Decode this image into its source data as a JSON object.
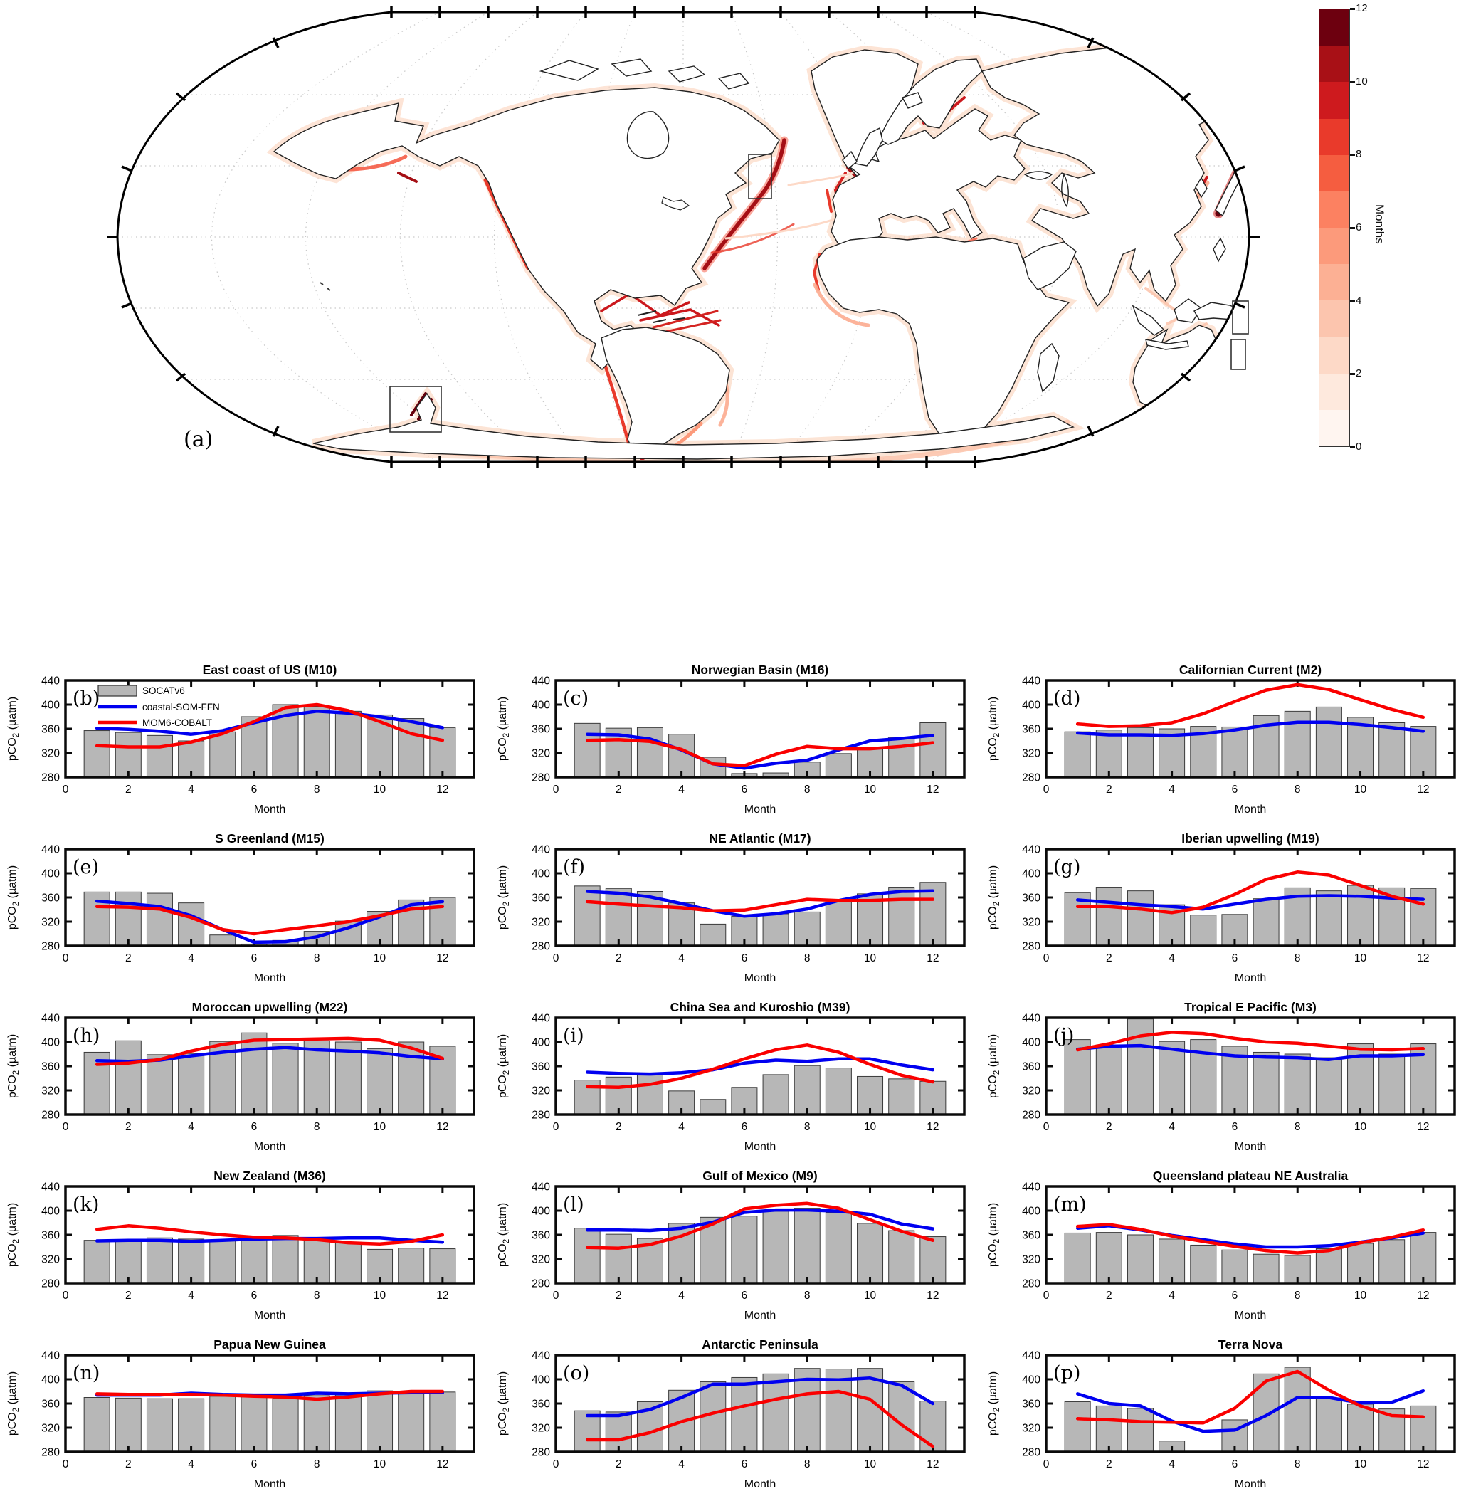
{
  "map": {
    "label": "(a)",
    "colorbar": {
      "title": "Months",
      "ticks": [
        0,
        2,
        4,
        6,
        8,
        10,
        12
      ],
      "min": 0,
      "max": 12,
      "colors": [
        "#fff5f0",
        "#fee9dd",
        "#fdd9c7",
        "#fcc5ae",
        "#fcb094",
        "#fc9a7b",
        "#fc8161",
        "#f55d40",
        "#e93a2b",
        "#ce1a1e",
        "#a81016",
        "#6d000f"
      ]
    }
  },
  "axes_common": {
    "xlabel": "Month",
    "ylabel": "pCO2 (µatm)",
    "xticks": [
      0,
      2,
      4,
      6,
      8,
      10,
      12
    ],
    "yticks": [
      280,
      320,
      360,
      400,
      440
    ],
    "xlim": [
      0,
      13
    ],
    "ylim": [
      280,
      440
    ],
    "grid": false
  },
  "months": [
    1,
    2,
    3,
    4,
    5,
    6,
    7,
    8,
    9,
    10,
    11,
    12
  ],
  "legend": {
    "position": "top-left of panel (b)",
    "entries": [
      {
        "label": "SOCATv6",
        "swatch": "bar",
        "color": "#b7b7b7"
      },
      {
        "label": "coastal-SOM-FFN",
        "swatch": "line",
        "color": "#0000f0"
      },
      {
        "label": "MOM6-COBALT",
        "swatch": "line",
        "color": "#fa0000"
      }
    ]
  },
  "chart_data": [
    {
      "type": "bar",
      "panel": "(b)",
      "title": "East coast of US (M10)",
      "series": [
        {
          "name": "SOCATv6",
          "type": "bar",
          "values": [
            357,
            354,
            349,
            340,
            355,
            380,
            400,
            397,
            389,
            383,
            377,
            362
          ]
        },
        {
          "name": "coastal-SOM-FFN",
          "type": "line",
          "values": [
            361,
            359,
            356,
            351,
            357,
            370,
            382,
            389,
            386,
            380,
            372,
            362
          ]
        },
        {
          "name": "MOM6-COBALT",
          "type": "line",
          "values": [
            332,
            330,
            330,
            338,
            352,
            372,
            395,
            400,
            390,
            372,
            352,
            341
          ]
        }
      ]
    },
    {
      "type": "bar",
      "panel": "(c)",
      "title": "Norwegian Basin (M16)",
      "series": [
        {
          "name": "SOCATv6",
          "type": "bar",
          "values": [
            369,
            361,
            362,
            351,
            313,
            286,
            287,
            305,
            319,
            330,
            346,
            370
          ]
        },
        {
          "name": "coastal-SOM-FFN",
          "type": "line",
          "values": [
            351,
            350,
            343,
            325,
            302,
            295,
            303,
            308,
            325,
            340,
            344,
            349
          ]
        },
        {
          "name": "MOM6-COBALT",
          "type": "line",
          "values": [
            341,
            342,
            339,
            326,
            302,
            299,
            318,
            331,
            327,
            327,
            331,
            337
          ]
        }
      ]
    },
    {
      "type": "bar",
      "panel": "(d)",
      "title": "Californian Current (M2)",
      "series": [
        {
          "name": "SOCATv6",
          "type": "bar",
          "values": [
            355,
            358,
            362,
            360,
            364,
            363,
            382,
            389,
            396,
            379,
            370,
            364
          ]
        },
        {
          "name": "coastal-SOM-FFN",
          "type": "line",
          "values": [
            353,
            350,
            350,
            349,
            352,
            358,
            366,
            371,
            371,
            367,
            362,
            356
          ]
        },
        {
          "name": "MOM6-COBALT",
          "type": "line",
          "values": [
            368,
            364,
            365,
            370,
            385,
            405,
            424,
            433,
            425,
            408,
            392,
            379
          ]
        }
      ]
    },
    {
      "type": "bar",
      "panel": "(e)",
      "title": "S Greenland (M15)",
      "series": [
        {
          "name": "SOCATv6",
          "type": "bar",
          "values": [
            369,
            369,
            367,
            351,
            298,
            283,
            289,
            304,
            321,
            337,
            356,
            360
          ]
        },
        {
          "name": "coastal-SOM-FFN",
          "type": "line",
          "values": [
            354,
            350,
            345,
            330,
            307,
            286,
            287,
            295,
            310,
            328,
            348,
            353
          ]
        },
        {
          "name": "MOM6-COBALT",
          "type": "line",
          "values": [
            345,
            344,
            341,
            327,
            307,
            300,
            307,
            313,
            320,
            330,
            341,
            345
          ]
        }
      ]
    },
    {
      "type": "bar",
      "panel": "(f)",
      "title": "NE Atlantic (M17)",
      "series": [
        {
          "name": "SOCATv6",
          "type": "bar",
          "values": [
            379,
            375,
            370,
            351,
            316,
            329,
            333,
            336,
            355,
            366,
            377,
            385
          ]
        },
        {
          "name": "coastal-SOM-FFN",
          "type": "line",
          "values": [
            370,
            367,
            361,
            350,
            338,
            329,
            333,
            341,
            355,
            365,
            370,
            371
          ]
        },
        {
          "name": "MOM6-COBALT",
          "type": "line",
          "values": [
            353,
            349,
            346,
            343,
            338,
            339,
            348,
            357,
            355,
            355,
            357,
            357
          ]
        }
      ]
    },
    {
      "type": "bar",
      "panel": "(g)",
      "title": "Iberian upwelling (M19)",
      "series": [
        {
          "name": "SOCATv6",
          "type": "bar",
          "values": [
            368,
            377,
            371,
            348,
            331,
            332,
            358,
            376,
            371,
            380,
            376,
            375
          ]
        },
        {
          "name": "coastal-SOM-FFN",
          "type": "line",
          "values": [
            356,
            352,
            348,
            345,
            341,
            349,
            357,
            362,
            363,
            362,
            359,
            357
          ]
        },
        {
          "name": "MOM6-COBALT",
          "type": "line",
          "values": [
            345,
            345,
            341,
            335,
            344,
            365,
            390,
            402,
            397,
            380,
            362,
            349
          ]
        }
      ]
    },
    {
      "type": "bar",
      "panel": "(h)",
      "title": "Moroccan upwelling (M22)",
      "series": [
        {
          "name": "SOCATv6",
          "type": "bar",
          "values": [
            383,
            402,
            379,
            381,
            401,
            415,
            398,
            402,
            400,
            389,
            400,
            393
          ]
        },
        {
          "name": "coastal-SOM-FFN",
          "type": "line",
          "values": [
            369,
            368,
            370,
            377,
            383,
            388,
            391,
            387,
            385,
            382,
            376,
            372
          ]
        },
        {
          "name": "MOM6-COBALT",
          "type": "line",
          "values": [
            363,
            365,
            371,
            385,
            396,
            403,
            404,
            405,
            406,
            403,
            390,
            373
          ]
        }
      ]
    },
    {
      "type": "bar",
      "panel": "(i)",
      "title": "China Sea and Kuroshio (M39)",
      "series": [
        {
          "name": "SOCATv6",
          "type": "bar",
          "values": [
            337,
            342,
            346,
            319,
            305,
            325,
            346,
            361,
            357,
            343,
            339,
            335
          ]
        },
        {
          "name": "coastal-SOM-FFN",
          "type": "line",
          "values": [
            350,
            348,
            347,
            349,
            354,
            365,
            370,
            368,
            372,
            372,
            362,
            354
          ]
        },
        {
          "name": "MOM6-COBALT",
          "type": "line",
          "values": [
            326,
            325,
            330,
            340,
            355,
            372,
            387,
            395,
            383,
            363,
            345,
            334
          ]
        }
      ]
    },
    {
      "type": "bar",
      "panel": "(j)",
      "title": "Tropical E Pacific (M3)",
      "series": [
        {
          "name": "SOCATv6",
          "type": "bar",
          "values": [
            404,
            395,
            438,
            401,
            404,
            393,
            383,
            380,
            374,
            397,
            380,
            397
          ]
        },
        {
          "name": "coastal-SOM-FFN",
          "type": "line",
          "values": [
            388,
            393,
            394,
            388,
            382,
            377,
            375,
            374,
            371,
            377,
            377,
            379
          ]
        },
        {
          "name": "MOM6-COBALT",
          "type": "line",
          "values": [
            387,
            397,
            410,
            416,
            414,
            406,
            400,
            398,
            393,
            388,
            387,
            389
          ]
        }
      ]
    },
    {
      "type": "bar",
      "panel": "(k)",
      "title": "New Zealand (M36)",
      "series": [
        {
          "name": "SOCATv6",
          "type": "bar",
          "values": [
            351,
            349,
            355,
            353,
            351,
            354,
            359,
            352,
            347,
            336,
            338,
            337
          ]
        },
        {
          "name": "coastal-SOM-FFN",
          "type": "line",
          "values": [
            350,
            351,
            351,
            349,
            351,
            353,
            354,
            354,
            355,
            355,
            351,
            348
          ]
        },
        {
          "name": "MOM6-COBALT",
          "type": "line",
          "values": [
            369,
            375,
            371,
            365,
            360,
            356,
            355,
            352,
            347,
            345,
            349,
            360
          ]
        }
      ]
    },
    {
      "type": "bar",
      "panel": "(l)",
      "title": "Gulf of Mexico (M9)",
      "series": [
        {
          "name": "SOCATv6",
          "type": "bar",
          "values": [
            371,
            361,
            354,
            379,
            389,
            391,
            399,
            404,
            397,
            379,
            367,
            357
          ]
        },
        {
          "name": "coastal-SOM-FFN",
          "type": "line",
          "values": [
            368,
            368,
            367,
            371,
            381,
            397,
            401,
            401,
            399,
            394,
            378,
            370
          ]
        },
        {
          "name": "MOM6-COBALT",
          "type": "line",
          "values": [
            339,
            338,
            344,
            358,
            378,
            403,
            409,
            412,
            404,
            385,
            366,
            351
          ]
        }
      ]
    },
    {
      "type": "bar",
      "panel": "(m)",
      "title": "Queensland plateau NE Australia",
      "series": [
        {
          "name": "SOCATv6",
          "type": "bar",
          "values": [
            363,
            364,
            360,
            353,
            343,
            335,
            328,
            326,
            337,
            346,
            352,
            364
          ]
        },
        {
          "name": "coastal-SOM-FFN",
          "type": "line",
          "values": [
            371,
            375,
            368,
            359,
            352,
            345,
            340,
            340,
            342,
            348,
            355,
            363
          ]
        },
        {
          "name": "MOM6-COBALT",
          "type": "line",
          "values": [
            374,
            377,
            369,
            358,
            349,
            341,
            334,
            330,
            334,
            347,
            356,
            368
          ]
        }
      ]
    },
    {
      "type": "bar",
      "panel": "(n)",
      "title": "Papua New Guinea",
      "series": [
        {
          "name": "SOCATv6",
          "type": "bar",
          "values": [
            370,
            369,
            368,
            368,
            372,
            371,
            369,
            373,
            374,
            381,
            377,
            379
          ]
        },
        {
          "name": "coastal-SOM-FFN",
          "type": "line",
          "values": [
            374,
            374,
            374,
            377,
            375,
            374,
            374,
            377,
            376,
            377,
            378,
            378
          ]
        },
        {
          "name": "MOM6-COBALT",
          "type": "line",
          "values": [
            376,
            375,
            375,
            375,
            374,
            372,
            371,
            367,
            371,
            376,
            380,
            380
          ]
        }
      ]
    },
    {
      "type": "bar",
      "panel": "(o)",
      "title": "Antarctic Peninsula",
      "series": [
        {
          "name": "SOCATv6",
          "type": "bar",
          "values": [
            348,
            346,
            363,
            382,
            396,
            403,
            409,
            418,
            417,
            418,
            396,
            364
          ]
        },
        {
          "name": "coastal-SOM-FFN",
          "type": "line",
          "values": [
            340,
            340,
            350,
            370,
            392,
            392,
            396,
            400,
            399,
            402,
            390,
            360
          ]
        },
        {
          "name": "MOM6-COBALT",
          "type": "line",
          "values": [
            300,
            300,
            312,
            330,
            344,
            356,
            367,
            376,
            380,
            367,
            325,
            289
          ]
        }
      ]
    },
    {
      "type": "bar",
      "panel": "(p)",
      "title": "Terra Nova",
      "series": [
        {
          "name": "SOCATv6",
          "type": "bar",
          "values": [
            363,
            356,
            352,
            298,
            null,
            333,
            409,
            420,
            369,
            359,
            351,
            356
          ]
        },
        {
          "name": "coastal-SOM-FFN",
          "type": "line",
          "values": [
            376,
            360,
            356,
            331,
            314,
            316,
            340,
            370,
            370,
            361,
            362,
            381
          ]
        },
        {
          "name": "MOM6-COBALT",
          "type": "line",
          "values": [
            335,
            333,
            330,
            329,
            328,
            352,
            397,
            413,
            382,
            356,
            340,
            338
          ]
        }
      ]
    }
  ]
}
